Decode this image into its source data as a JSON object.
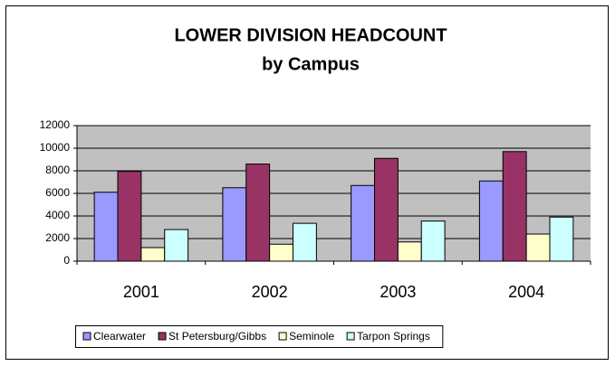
{
  "chart_data": {
    "type": "bar",
    "title": "LOWER DIVISION HEADCOUNT",
    "subtitle": "by Campus",
    "categories": [
      "2001",
      "2002",
      "2003",
      "2004"
    ],
    "series": [
      {
        "name": "Clearwater",
        "color": "#9999ff",
        "values": [
          6100,
          6500,
          6700,
          7100
        ]
      },
      {
        "name": "St Petersburg/Gibbs",
        "color": "#993366",
        "values": [
          7950,
          8600,
          9100,
          9700
        ]
      },
      {
        "name": "Seminole",
        "color": "#ffffcc",
        "values": [
          1200,
          1500,
          1700,
          2400
        ]
      },
      {
        "name": "Tarpon Springs",
        "color": "#ccffff",
        "values": [
          2800,
          3350,
          3550,
          3900
        ]
      }
    ],
    "ylim": [
      0,
      12000
    ],
    "yticks": [
      0,
      2000,
      4000,
      6000,
      8000,
      10000,
      12000
    ],
    "grid": true,
    "legend": "bottom"
  }
}
